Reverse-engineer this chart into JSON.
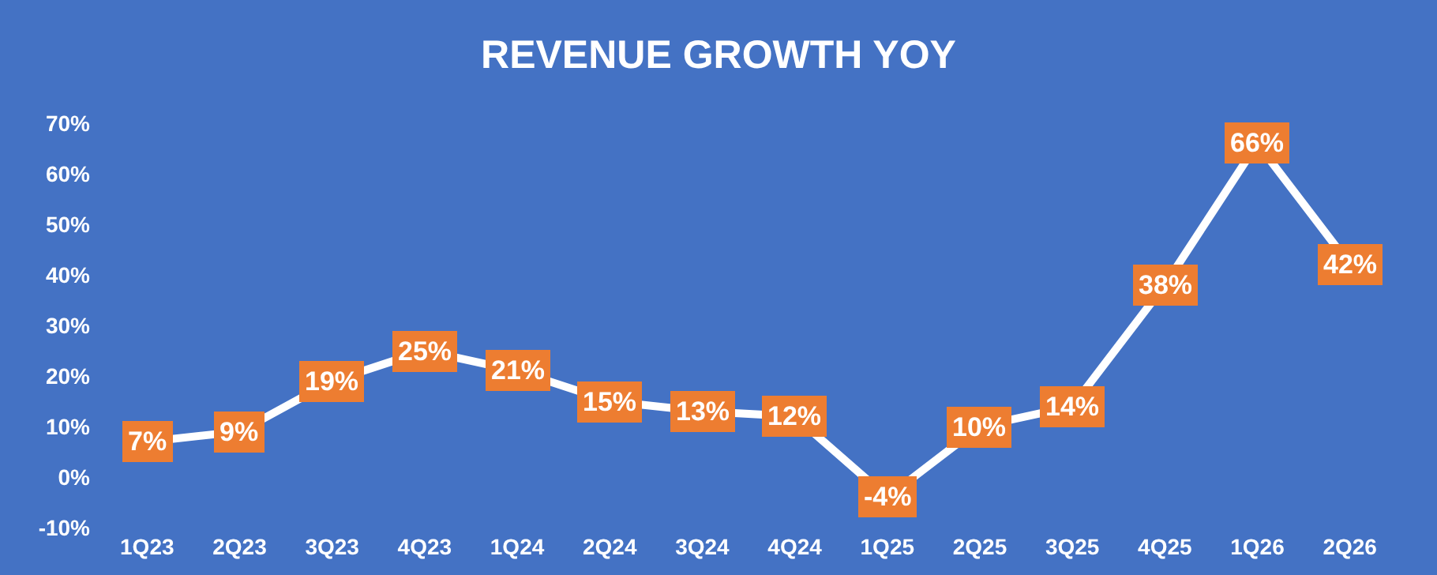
{
  "chart_data": {
    "type": "line",
    "title": "REVENUE GROWTH YOY",
    "categories": [
      "1Q23",
      "2Q23",
      "3Q23",
      "4Q23",
      "1Q24",
      "2Q24",
      "3Q24",
      "4Q24",
      "1Q25",
      "2Q25",
      "3Q25",
      "4Q25",
      "1Q26",
      "2Q26"
    ],
    "series": [
      {
        "color": "#ffffff",
        "values": [
          7,
          9,
          19,
          25,
          21,
          15,
          13,
          12,
          -4,
          10,
          14,
          38,
          66,
          42
        ],
        "value_labels": [
          "7%",
          "9%",
          "19%",
          "25%",
          "21%",
          "15%",
          "13%",
          "12%",
          "-4%",
          "10%",
          "14%",
          "38%",
          "66%",
          "42%"
        ]
      }
    ],
    "ylim": [
      -10,
      70
    ],
    "yticks": [
      {
        "value": -10,
        "label": "-10%"
      },
      {
        "value": 0,
        "label": "0%"
      },
      {
        "value": 10,
        "label": "10%"
      },
      {
        "value": 20,
        "label": "20%"
      },
      {
        "value": 30,
        "label": "30%"
      },
      {
        "value": 40,
        "label": "40%"
      },
      {
        "value": 50,
        "label": "50%"
      },
      {
        "value": 60,
        "label": "60%"
      },
      {
        "value": 70,
        "label": "70%"
      }
    ],
    "grid": false,
    "legend": false,
    "marker": "square",
    "line_style": "solid"
  }
}
